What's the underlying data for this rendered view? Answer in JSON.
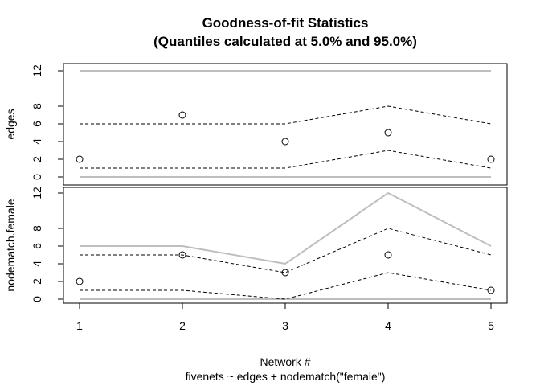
{
  "title_line1": "Goodness-of-fit Statistics",
  "title_line2": "(Quantiles calculated at  5.0% and 95.0%)",
  "xlabel": "Network #",
  "subtitle": "fivenets ~ edges + nodematch(\"female\")",
  "colors": {
    "range": "#bebebe",
    "quantile": "#000000",
    "observed": "#000000"
  },
  "chart_data": [
    {
      "type": "line",
      "ylabel": "edges",
      "x": [
        1,
        2,
        3,
        4,
        5
      ],
      "ylim": [
        0,
        12
      ],
      "yticks": [
        0,
        2,
        4,
        6,
        8,
        12
      ],
      "grid": false,
      "series": [
        {
          "role": "observed",
          "style": "points",
          "values": [
            2,
            7,
            4,
            5,
            2
          ]
        },
        {
          "role": "upper-quantile",
          "style": "dashed",
          "values": [
            6,
            6,
            6,
            8,
            6
          ]
        },
        {
          "role": "lower-quantile",
          "style": "dashed",
          "values": [
            1,
            1,
            1,
            3,
            1
          ]
        },
        {
          "role": "max",
          "style": "solid-gray",
          "values": [
            12,
            12,
            12,
            12,
            12
          ]
        },
        {
          "role": "min",
          "style": "solid-gray",
          "values": [
            0,
            0,
            0,
            0,
            0
          ]
        }
      ]
    },
    {
      "type": "line",
      "ylabel": "nodematch.female",
      "x": [
        1,
        2,
        3,
        4,
        5
      ],
      "xticks": [
        1,
        2,
        3,
        4,
        5
      ],
      "ylim": [
        0,
        12
      ],
      "yticks": [
        0,
        2,
        4,
        6,
        8,
        12
      ],
      "grid": false,
      "series": [
        {
          "role": "observed",
          "style": "points",
          "values": [
            2,
            5,
            3,
            5,
            1
          ]
        },
        {
          "role": "upper-quantile",
          "style": "dashed",
          "values": [
            5,
            5,
            3,
            8,
            5
          ]
        },
        {
          "role": "lower-quantile",
          "style": "dashed",
          "values": [
            1,
            1,
            0,
            3,
            1
          ]
        },
        {
          "role": "max",
          "style": "solid-gray",
          "values": [
            6,
            6,
            4,
            12,
            6
          ]
        },
        {
          "role": "min",
          "style": "solid-gray",
          "values": [
            0,
            0,
            0,
            0,
            0
          ]
        }
      ]
    }
  ]
}
